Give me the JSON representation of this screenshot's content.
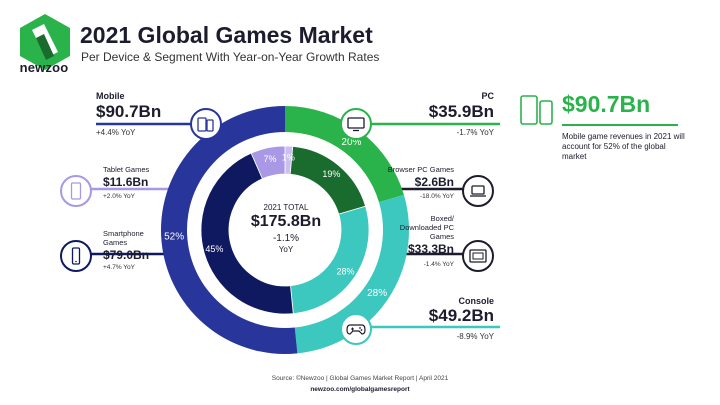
{
  "header": {
    "logo_text": "newzoo",
    "title": "2021 Global Games Market",
    "subtitle": "Per Device & Segment With Year-on-Year Growth Rates"
  },
  "chart_data": {
    "type": "pie",
    "title": "2021 Global Games Market",
    "center": {
      "label": "2021 TOTAL",
      "value": "$175.8Bn",
      "growth": "-1.1%",
      "growth_unit": "YoY"
    },
    "outer_ring": [
      {
        "name": "PC",
        "value": 35.9,
        "share_label": "20%",
        "value_label": "$35.9Bn",
        "yoy": "-1.7% YoY",
        "color": "#2ab34a"
      },
      {
        "name": "Console",
        "value": 49.2,
        "share_label": "28%",
        "value_label": "$49.2Bn",
        "yoy": "-8.9% YoY",
        "color": "#3cc8be"
      },
      {
        "name": "Mobile",
        "value": 90.7,
        "share_label": "52%",
        "value_label": "$90.7Bn",
        "yoy": "+4.4% YoY",
        "color": "#28359a"
      }
    ],
    "inner_ring": [
      {
        "name": "Browser PC Games",
        "value": 2.6,
        "share_label": "1%",
        "value_label": "$2.6Bn",
        "yoy": "-18.0% YoY",
        "color": "#c9bff0"
      },
      {
        "name": "Boxed/ Downloaded PC Games",
        "value": 33.3,
        "share_label": "19%",
        "value_label": "$33.3Bn",
        "yoy": "-1.4% YoY",
        "color": "#1a6b2e"
      },
      {
        "name": "Console",
        "value": 49.2,
        "share_label": "28%",
        "value_label": "",
        "yoy": "",
        "color": "#3cc8be"
      },
      {
        "name": "Smartphone Games",
        "value": 79.0,
        "share_label": "45%",
        "value_label": "$79.0Bn",
        "yoy": "+4.7% YoY",
        "color": "#0e1960"
      },
      {
        "name": "Tablet Games",
        "value": 11.6,
        "share_label": "7%",
        "value_label": "$11.6Bn",
        "yoy": "+2.0% YoY",
        "color": "#a898e6"
      }
    ]
  },
  "callouts": {
    "mobile": {
      "name": "Mobile",
      "value": "$90.7Bn",
      "yoy": "+4.4% YoY",
      "icon": "mobile-devices-icon"
    },
    "tablet": {
      "name": "Tablet Games",
      "value": "$11.6Bn",
      "yoy": "+2.0% YoY",
      "icon": "tablet-icon"
    },
    "smartphone": {
      "name": "Smartphone Games",
      "value": "$79.0Bn",
      "yoy": "+4.7% YoY",
      "icon": "smartphone-icon"
    },
    "pc": {
      "name": "PC",
      "value": "$35.9Bn",
      "yoy": "-1.7% YoY",
      "icon": "monitor-icon"
    },
    "browser": {
      "name": "Browser PC Games",
      "value": "$2.6Bn",
      "yoy": "-18.0% YoY",
      "icon": "laptop-icon"
    },
    "boxed": {
      "name": "Boxed/ Downloaded PC Games",
      "value": "$33.3Bn",
      "yoy": "-1.4% YoY",
      "icon": "game-disc-icon"
    },
    "console": {
      "name": "Console",
      "value": "$49.2Bn",
      "yoy": "-8.9% YoY",
      "icon": "gamepad-icon"
    }
  },
  "highlight": {
    "value": "$90.7Bn",
    "text": "Mobile game revenues in 2021 will account for 52% of the global market"
  },
  "footer": {
    "source": "Source: ©Newzoo | Global Games Market Report | April 2021",
    "url": "newzoo.com/globalgamesreport"
  },
  "colors": {
    "mobile": "#28359a",
    "smartphone": "#0e1960",
    "tablet": "#a898e6",
    "pc": "#2ab34a",
    "boxed": "#1a6b2e",
    "browser": "#c9bff0",
    "console": "#3cc8be",
    "accent_green": "#2ab34a"
  }
}
